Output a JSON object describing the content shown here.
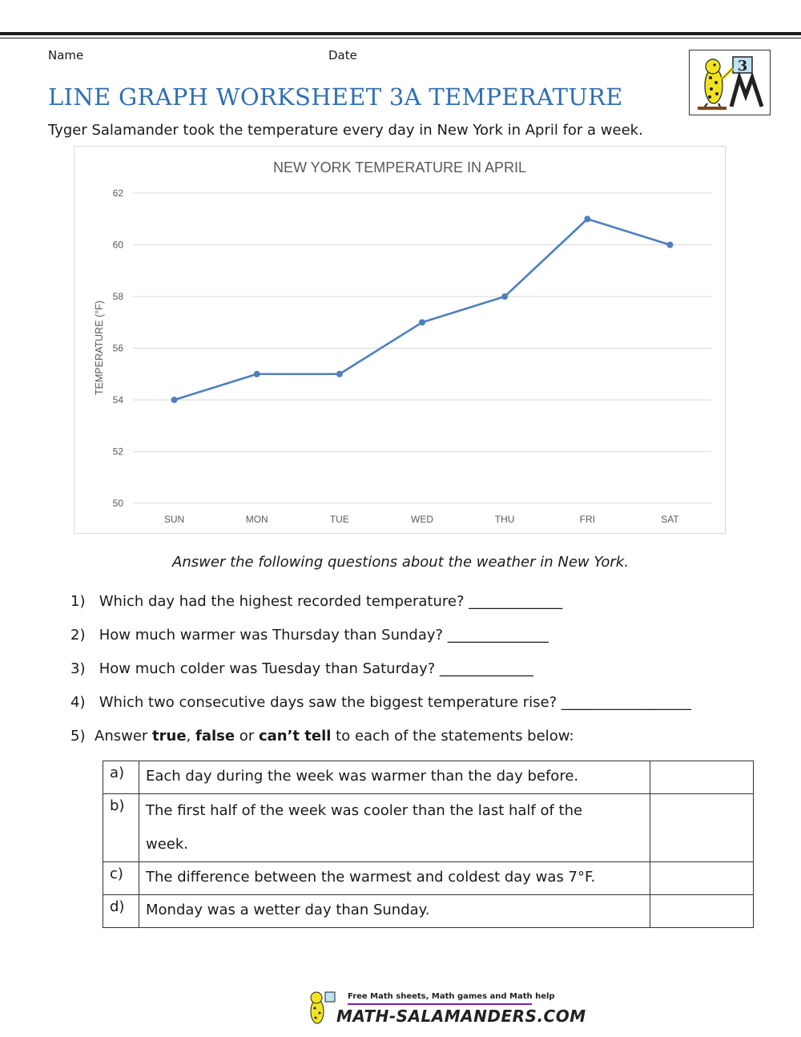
{
  "header": {
    "name_label": "Name",
    "date_label": "Date",
    "title": "LINE GRAPH WORKSHEET 3A TEMPERATURE",
    "intro": "Tyger Salamander took the temperature every day in New York in April for a week.",
    "logo_grade": "3"
  },
  "chart_data": {
    "type": "line",
    "title": "NEW YORK TEMPERATURE IN APRIL",
    "xlabel": "",
    "ylabel": "TEMPERATURE (°F)",
    "categories": [
      "SUN",
      "MON",
      "TUE",
      "WED",
      "THU",
      "FRI",
      "SAT"
    ],
    "series": [
      {
        "values": [
          54,
          55,
          55,
          57,
          58,
          61,
          60
        ]
      }
    ],
    "ylim": [
      50,
      62
    ],
    "yticks": [
      50,
      52,
      54,
      56,
      58,
      60,
      62
    ],
    "grid": true,
    "line_color": "#4f7fbf",
    "grid_color": "#d9d9d9",
    "tick_color": "#595959"
  },
  "questions": {
    "heading": "Answer the following questions about the weather in New York.",
    "items": [
      {
        "num": "1)",
        "text": "Which day had the highest recorded temperature? _____________"
      },
      {
        "num": "2)",
        "text": "How much warmer was Thursday than Sunday? ______________"
      },
      {
        "num": "3)",
        "text": "How much colder was Tuesday than Saturday? _____________"
      },
      {
        "num": "4)",
        "text": "Which two consecutive days saw the biggest temperature rise? __________________"
      }
    ],
    "q5": {
      "num": "5)",
      "pre": "Answer ",
      "true_word": "true",
      "sep1": ", ",
      "false_word": "false",
      "sep2": " or ",
      "cant_word": "can’t tell",
      "post": " to each of the statements below:"
    }
  },
  "statements": [
    {
      "letter": "a)",
      "text": "Each day during the week was warmer than the day before."
    },
    {
      "letter": "b)",
      "text": "The first half of the week was cooler than the last half of the week."
    },
    {
      "letter": "c)",
      "text": "The difference between the warmest and coldest day was 7°F."
    },
    {
      "letter": "d)",
      "text": "Monday was a wetter day than Sunday."
    }
  ],
  "footer": {
    "tagline": "Free Math sheets, Math games and Math help",
    "site": "MATH-SALAMANDERS.COM"
  }
}
